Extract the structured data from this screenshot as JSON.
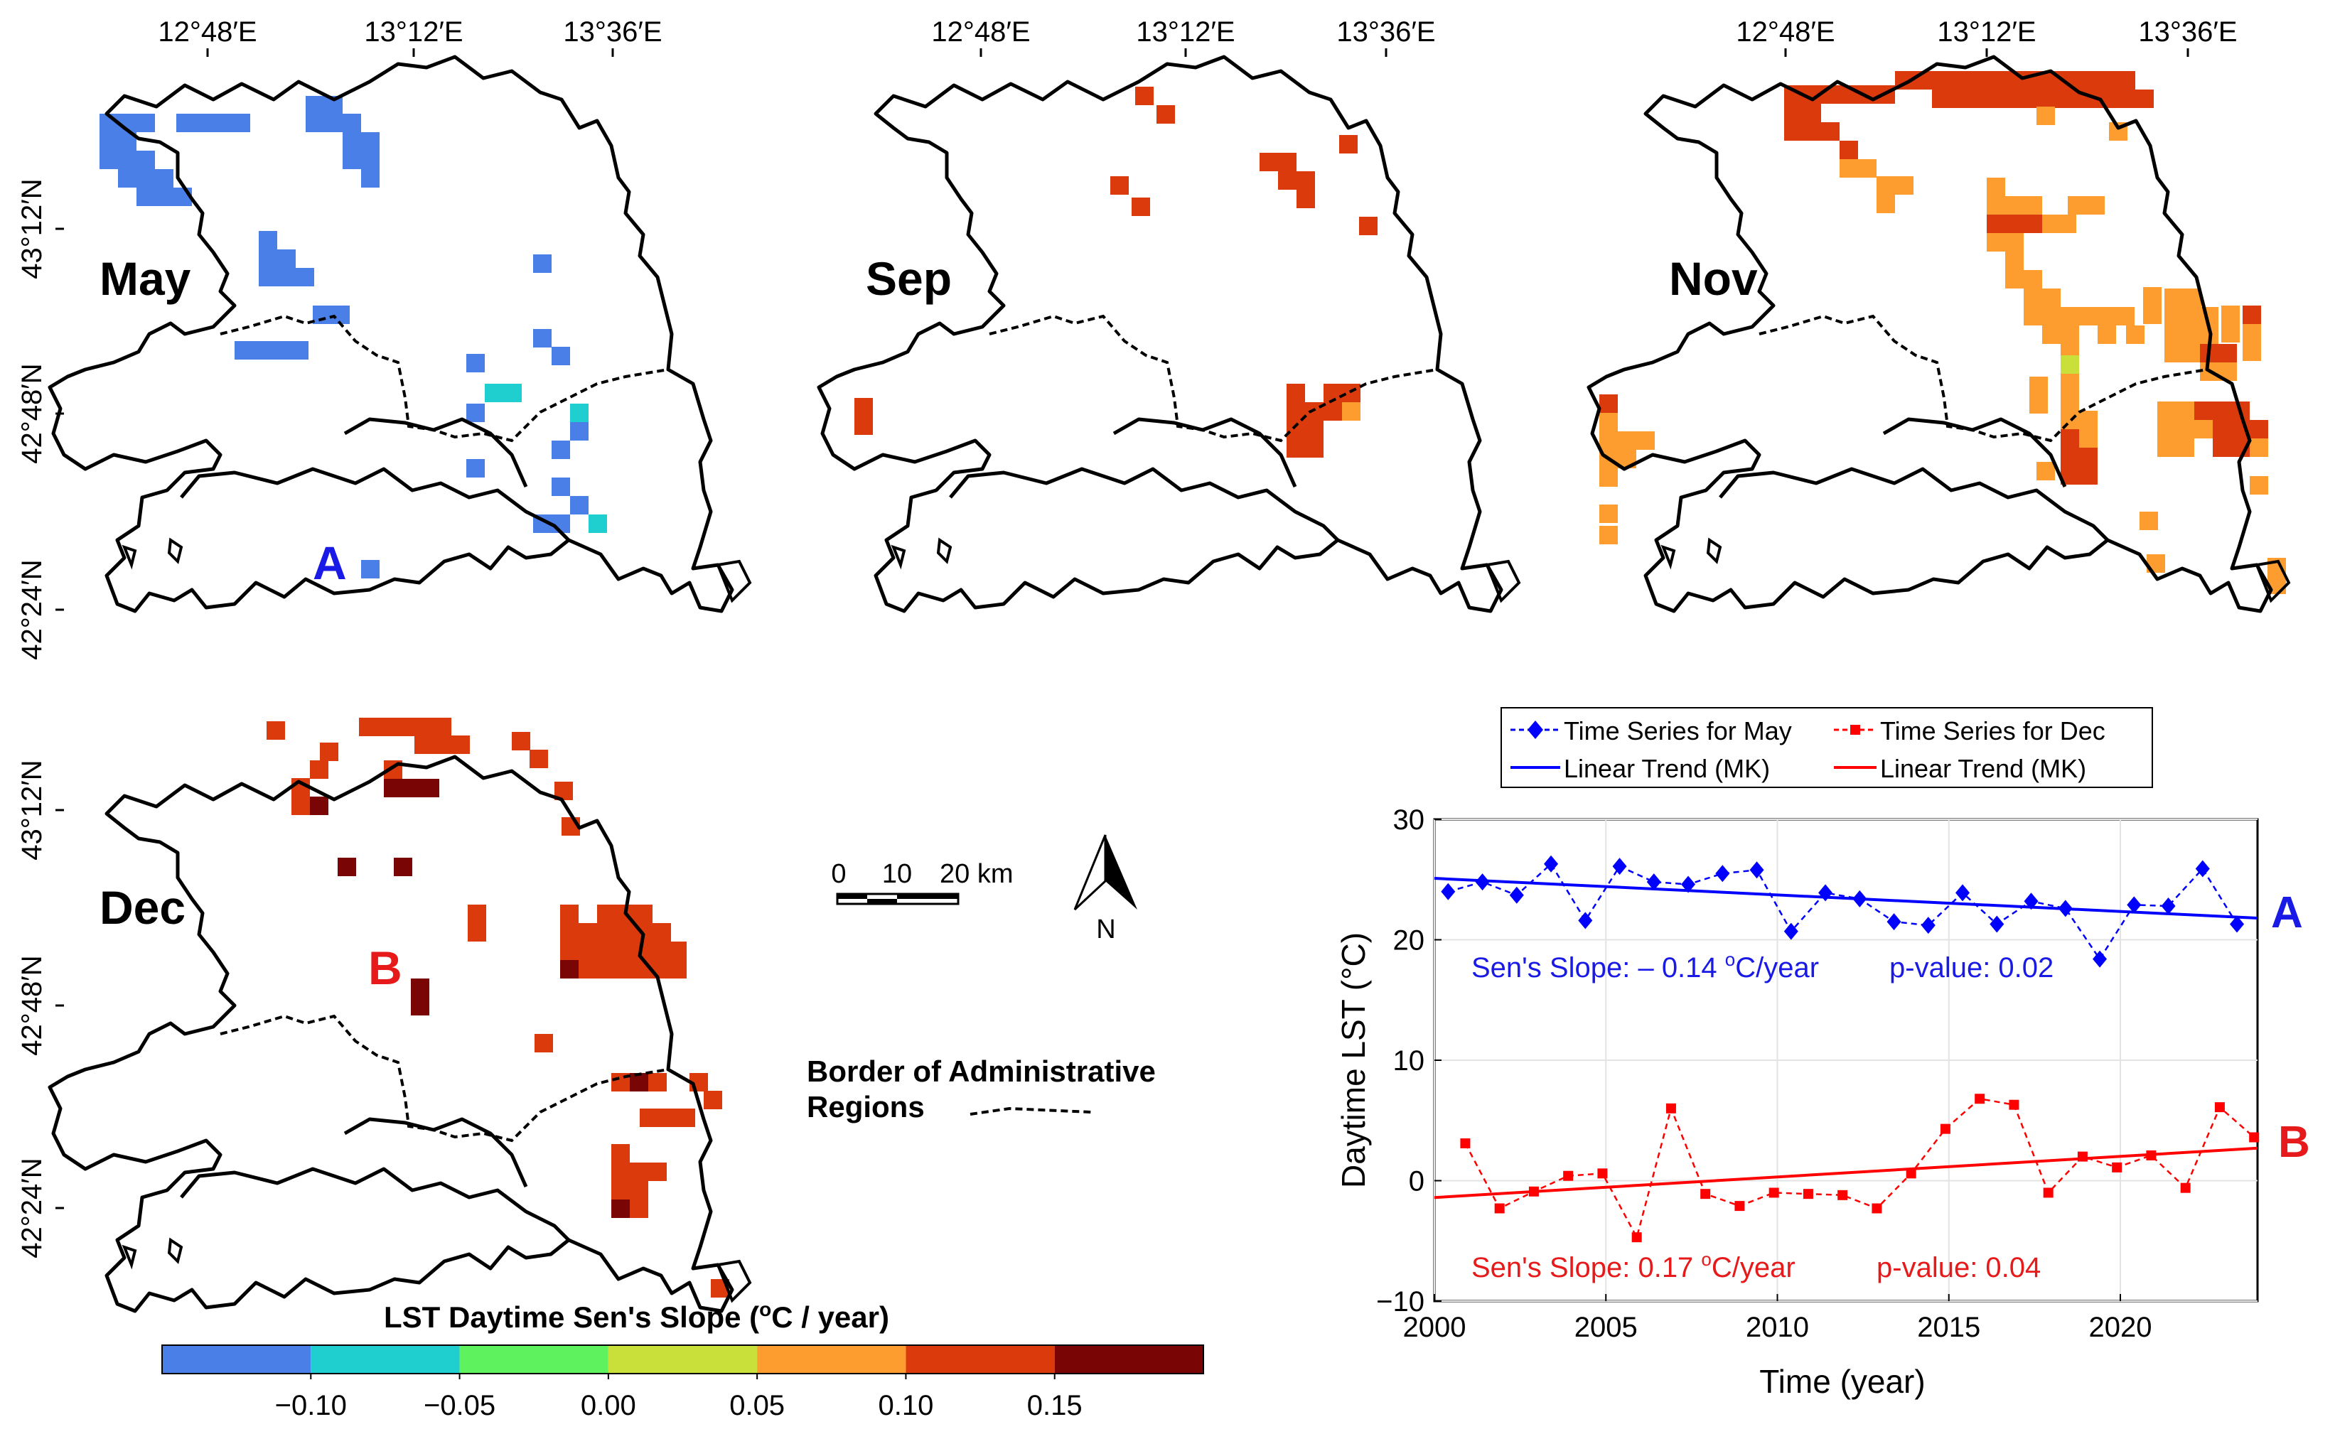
{
  "maps": [
    {
      "id": "may",
      "label": "May",
      "point_label": "A",
      "point_color": "#1a1ae6",
      "top_ticks": [
        "12°48′E",
        "13°12′E",
        "13°36′E"
      ],
      "left_ticks": [
        "43°12′N",
        "42°48′N",
        "42°24′N"
      ]
    },
    {
      "id": "sep",
      "label": "Sep",
      "top_ticks": [
        "12°48′E",
        "13°12′E",
        "13°36′E"
      ]
    },
    {
      "id": "nov",
      "label": "Nov",
      "top_ticks": [
        "12°48′E",
        "13°12′E",
        "13°36′E"
      ]
    },
    {
      "id": "dec",
      "label": "Dec",
      "point_label": "B",
      "point_color": "#e61a1a",
      "left_ticks": [
        "43°12′N",
        "42°48′N",
        "42°24′N"
      ]
    }
  ],
  "scale_bar": {
    "labels": [
      "0",
      "10",
      "20 km"
    ]
  },
  "north_arrow": {
    "label": "N"
  },
  "legend_border": {
    "line1": "Border of Administrative",
    "line2": "Regions"
  },
  "colorbar": {
    "title": "LST Daytime Sen's Slope (",
    "title_sup": "o",
    "title_end": "C / year)",
    "colors": [
      "#4a7fe8",
      "#1fcfcf",
      "#5ff25f",
      "#c9e03a",
      "#fd9c2f",
      "#db3a0c",
      "#7a0505"
    ],
    "ticks": [
      "−0.10",
      "−0.05",
      "0.00",
      "0.05",
      "0.10",
      "0.15"
    ]
  },
  "colors": {
    "may": "#4a7fe8",
    "cyan": "#1fcfcf",
    "orange": "#fd9c2f",
    "red": "#db3a0c",
    "darkred": "#7a0505",
    "yellowgreen": "#c9e03a"
  },
  "chart_data": {
    "type": "line",
    "xlabel": "Time (year)",
    "ylabel": "Daytime LST (°C)",
    "xlim": [
      2000,
      2024
    ],
    "ylim": [
      -10,
      30
    ],
    "xticks": [
      2000,
      2005,
      2010,
      2015,
      2020
    ],
    "yticks": [
      -10,
      0,
      10,
      20,
      30
    ],
    "grid": true,
    "legend_position": "top",
    "legend": [
      "Time Series for May",
      "Time Series for Dec",
      "Linear Trend (MK)",
      "Linear Trend (MK)"
    ],
    "series": [
      {
        "name": "Time Series for May",
        "color": "#0000ff",
        "marker": "diamond",
        "x": [
          2000.4,
          2001.4,
          2002.4,
          2003.4,
          2004.4,
          2005.4,
          2006.4,
          2007.4,
          2008.4,
          2009.4,
          2010.4,
          2011.4,
          2012.4,
          2013.4,
          2014.4,
          2015.4,
          2016.4,
          2017.4,
          2018.4,
          2019.4,
          2020.4,
          2021.4,
          2022.4,
          2023.4
        ],
        "y": [
          24.0,
          24.8,
          23.7,
          26.3,
          21.6,
          26.1,
          24.8,
          24.6,
          25.5,
          25.8,
          20.7,
          23.9,
          23.4,
          21.5,
          21.2,
          23.9,
          21.3,
          23.2,
          22.6,
          18.4,
          22.9,
          22.8,
          25.9,
          21.3
        ]
      },
      {
        "name": "Time Series for Dec",
        "color": "#ff0000",
        "marker": "square",
        "x": [
          2000.9,
          2001.9,
          2002.9,
          2003.9,
          2004.9,
          2005.9,
          2006.9,
          2007.9,
          2008.9,
          2009.9,
          2010.9,
          2011.9,
          2012.9,
          2013.9,
          2014.9,
          2015.9,
          2016.9,
          2017.9,
          2018.9,
          2019.9,
          2020.9,
          2021.9,
          2022.9,
          2023.9
        ],
        "y": [
          3.1,
          -2.3,
          -0.9,
          0.4,
          0.6,
          -4.7,
          6.0,
          -1.1,
          -2.1,
          -1.0,
          -1.1,
          -1.2,
          -2.3,
          0.6,
          4.3,
          6.8,
          6.3,
          -1.0,
          2.0,
          1.1,
          2.1,
          -0.6,
          6.1,
          3.6
        ]
      },
      {
        "name": "Linear Trend (MK) May",
        "color": "#0000ff",
        "x": [
          2000,
          2024
        ],
        "y": [
          25.1,
          21.8
        ]
      },
      {
        "name": "Linear Trend (MK) Dec",
        "color": "#ff0000",
        "x": [
          2000,
          2024
        ],
        "y": [
          -1.4,
          2.7
        ]
      }
    ],
    "annotations": {
      "may_slope": "Sen's Slope: – 0.14 ",
      "may_unit": "C/year",
      "may_p": "p-value: 0.02",
      "dec_slope": "Sen's Slope: 0.17 ",
      "dec_unit": "C/year",
      "dec_p": "p-value: 0.04",
      "deg": "o",
      "label_a": "A",
      "label_b": "B"
    }
  }
}
